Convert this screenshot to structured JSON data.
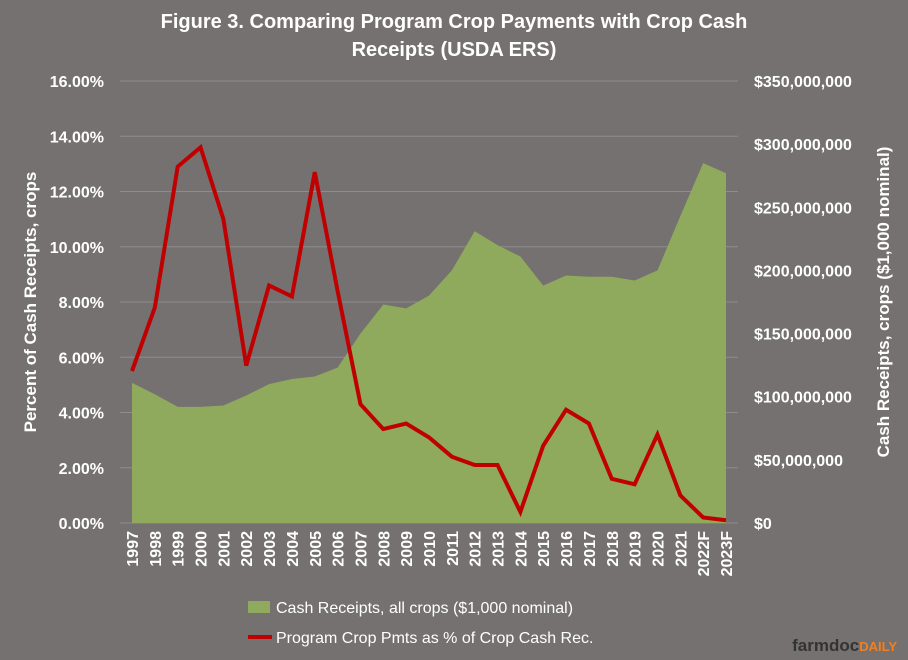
{
  "chart_data": {
    "type": "area",
    "title_line1": "Figure  3. Comparing  Program  Crop  Payments  with  Crop  Cash",
    "title_line2": "Receipts  (USDA ERS)",
    "ylabel_left": "Percent of Cash Receipts, crops",
    "ylabel_right": "Cash Receipts, crops ($1,000 nominal)",
    "categories": [
      "1997",
      "1998",
      "1999",
      "2000",
      "2001",
      "2002",
      "2003",
      "2004",
      "2005",
      "2006",
      "2007",
      "2008",
      "2009",
      "2010",
      "2011",
      "2012",
      "2013",
      "2014",
      "2015",
      "2016",
      "2017",
      "2018",
      "2019",
      "2020",
      "2021",
      "2022F",
      "2023F"
    ],
    "y_left": {
      "ylim": [
        0,
        0.16
      ],
      "ticks": [
        0,
        0.02,
        0.04,
        0.06,
        0.08,
        0.1,
        0.12,
        0.14,
        0.16
      ],
      "tick_labels": [
        "0.00%",
        "2.00%",
        "4.00%",
        "6.00%",
        "8.00%",
        "10.00%",
        "12.00%",
        "14.00%",
        "16.00%"
      ]
    },
    "y_right": {
      "ylim": [
        0,
        350000000
      ],
      "ticks": [
        0,
        50000000,
        100000000,
        150000000,
        200000000,
        250000000,
        300000000,
        350000000
      ],
      "tick_labels": [
        "$0",
        "$50,000,000",
        "$100,000,000",
        "$150,000,000",
        "$200,000,000",
        "$250,000,000",
        "$300,000,000",
        "$350,000,000"
      ]
    },
    "grid": true,
    "legend_position": "bottom",
    "series": [
      {
        "name": "Cash Receipts, all crops ($1,000 nominal)",
        "type": "area",
        "axis": "right",
        "color": "#8faa5c",
        "values": [
          111000000,
          102000000,
          92000000,
          92000000,
          93000000,
          101000000,
          110000000,
          114000000,
          116000000,
          123000000,
          150000000,
          173000000,
          170000000,
          180000000,
          200000000,
          231000000,
          220000000,
          211000000,
          188000000,
          196000000,
          195000000,
          195000000,
          192000000,
          200000000,
          243000000,
          285000000,
          277000000
        ]
      },
      {
        "name": "Program Crop Pmts as % of Crop Cash Rec.",
        "type": "line",
        "axis": "left",
        "color": "#c00000",
        "values": [
          0.055,
          0.078,
          0.129,
          0.136,
          0.11,
          0.057,
          0.086,
          0.082,
          0.127,
          0.084,
          0.043,
          0.034,
          0.036,
          0.031,
          0.024,
          0.021,
          0.021,
          0.004,
          0.028,
          0.041,
          0.036,
          0.016,
          0.014,
          0.032,
          0.01,
          0.002,
          0.001
        ]
      }
    ]
  },
  "watermark": {
    "part1": "farmdoc",
    "part2": "DAILY",
    "color1": "#333333",
    "color2": "#f08020"
  },
  "colors": {
    "background": "#757171",
    "area": "#8faa5c",
    "line": "#c00000",
    "text": "#ffffff"
  }
}
